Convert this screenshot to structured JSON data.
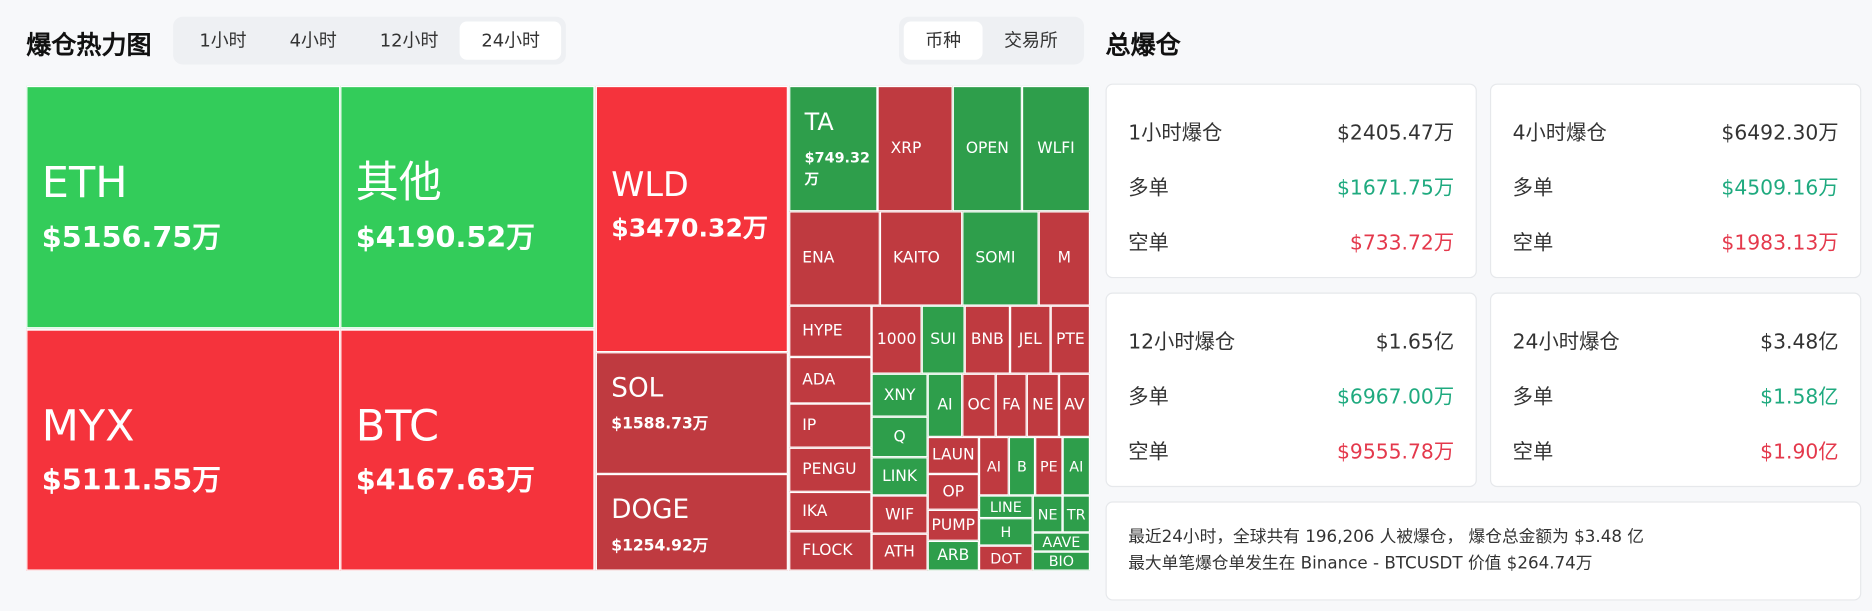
{
  "header": {
    "title": "爆仓热力图",
    "time_tabs": [
      "1小时",
      "4小时",
      "12小时",
      "24小时"
    ],
    "active_time_tab": 3,
    "group_tabs": [
      "币种",
      "交易所"
    ],
    "active_group_tab": 0
  },
  "treemap": {
    "tiles": [
      {
        "label": "ETH",
        "value": "$5156.75万",
        "color": "#33cc5a"
      },
      {
        "label": "其他",
        "value": "$4190.52万",
        "color": "#33cc5a"
      },
      {
        "label": "MYX",
        "value": "$5111.55万",
        "color": "#f5333c"
      },
      {
        "label": "BTC",
        "value": "$4167.63万",
        "color": "#f5333c"
      },
      {
        "label": "WLD",
        "value": "$3470.32万",
        "color": "#f5333c"
      },
      {
        "label": "SOL",
        "value": "$1588.73万",
        "color": "#bf3a40"
      },
      {
        "label": "DOGE",
        "value": "$1254.92万",
        "color": "#bf3a40"
      },
      {
        "label": "TA",
        "value": "$749.32万",
        "color": "#2e9e4b"
      },
      {
        "label": "XRP",
        "color": "#bf3a40"
      },
      {
        "label": "OPEN",
        "color": "#2e9e4b"
      },
      {
        "label": "WLFI",
        "color": "#2e9e4b"
      },
      {
        "label": "ENA",
        "color": "#bf3a40"
      },
      {
        "label": "KAITO",
        "color": "#bf3a40"
      },
      {
        "label": "SOMI",
        "color": "#2e9e4b"
      },
      {
        "label": "M",
        "color": "#bf3a40"
      },
      {
        "label": "HYPE",
        "color": "#bf3a40"
      },
      {
        "label": "ADA",
        "color": "#bf3a40"
      },
      {
        "label": "IP",
        "color": "#bf3a40"
      },
      {
        "label": "PENGU",
        "color": "#bf3a40"
      },
      {
        "label": "IKA",
        "color": "#bf3a40"
      },
      {
        "label": "FLOCK",
        "color": "#bf3a40"
      },
      {
        "label": "1000",
        "color": "#bf3a40"
      },
      {
        "label": "SUI",
        "color": "#2e9e4b"
      },
      {
        "label": "BNB",
        "color": "#bf3a40"
      },
      {
        "label": "JEL",
        "color": "#bf3a40"
      },
      {
        "label": "PTE",
        "color": "#bf3a40"
      },
      {
        "label": "XNY",
        "color": "#2e9e4b"
      },
      {
        "label": "AI",
        "color": "#2e9e4b"
      },
      {
        "label": "OC",
        "color": "#bf3a40"
      },
      {
        "label": "FA",
        "color": "#bf3a40"
      },
      {
        "label": "NE",
        "color": "#bf3a40"
      },
      {
        "label": "AV",
        "color": "#bf3a40"
      },
      {
        "label": "Q",
        "color": "#2e9e4b"
      },
      {
        "label": "LINK",
        "color": "#2e9e4b"
      },
      {
        "label": "WIF",
        "color": "#bf3a40"
      },
      {
        "label": "ATH",
        "color": "#bf3a40"
      },
      {
        "label": "LAUN",
        "color": "#bf3a40"
      },
      {
        "label": "OP",
        "color": "#bf3a40"
      },
      {
        "label": "PUMP",
        "color": "#bf3a40"
      },
      {
        "label": "ARB",
        "color": "#2e9e4b"
      },
      {
        "label": "AI",
        "color": "#bf3a40"
      },
      {
        "label": "B",
        "color": "#2e9e4b"
      },
      {
        "label": "PE",
        "color": "#bf3a40"
      },
      {
        "label": "AI",
        "color": "#2e9e4b"
      },
      {
        "label": "LINE",
        "color": "#2e9e4b"
      },
      {
        "label": "H",
        "color": "#2e9e4b"
      },
      {
        "label": "NE",
        "color": "#2e9e4b"
      },
      {
        "label": "TR",
        "color": "#2e9e4b"
      },
      {
        "label": "AAVE",
        "color": "#2e9e4b"
      },
      {
        "label": "DOT",
        "color": "#bf3a40"
      },
      {
        "label": "BIO",
        "color": "#2e9e4b"
      }
    ]
  },
  "summary": {
    "title": "总爆仓",
    "long_label": "多单",
    "short_label": "空单",
    "cards": [
      {
        "title": "1小时爆仓",
        "total": "$2405.47万",
        "long": "$1671.75万",
        "short": "$733.72万"
      },
      {
        "title": "4小时爆仓",
        "total": "$6492.30万",
        "long": "$4509.16万",
        "short": "$1983.13万"
      },
      {
        "title": "12小时爆仓",
        "total": "$1.65亿",
        "long": "$6967.00万",
        "short": "$9555.78万"
      },
      {
        "title": "24小时爆仓",
        "total": "$3.48亿",
        "long": "$1.58亿",
        "short": "$1.90亿"
      }
    ],
    "note_lines": [
      "最近24小时，全球共有 196,206 人被爆仓， 爆仓总金额为 $3.48 亿",
      "最大单笔爆仓单发生在 Binance - BTCUSDT 价值 $264.74万"
    ]
  }
}
